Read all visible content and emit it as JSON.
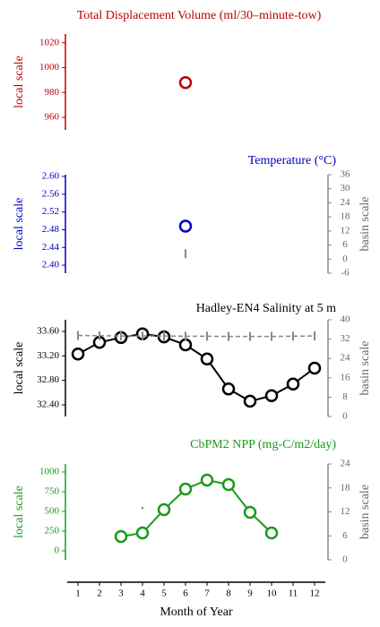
{
  "chart_data": [
    {
      "type": "scatter",
      "title": "Total Displacement Volume (ml/30–minute-tow)",
      "ylabel": "local scale",
      "x": [
        6
      ],
      "xlim": [
        0.5,
        12.5
      ],
      "series": [
        {
          "color": "#c00000",
          "values": [
            988
          ]
        }
      ],
      "ylim": [
        950,
        1027
      ],
      "yticks": [
        960,
        980,
        1000,
        1020
      ]
    },
    {
      "type": "scatter",
      "title": "Temperature (°C)",
      "ylabel": "local scale",
      "y2label": "basin scale",
      "x": [
        6
      ],
      "xlim": [
        0.5,
        12.5
      ],
      "series": [
        {
          "color": "#0000c0",
          "values": [
            2.488
          ]
        },
        {
          "color": "#888888",
          "axis": "y2",
          "marker": "dash",
          "values": [
            2.3
          ]
        }
      ],
      "ylim": [
        2.382,
        2.604
      ],
      "yticks": [
        {
          "value": 2.4,
          "label": "2.40"
        },
        2.44,
        2.48,
        2.52,
        2.56,
        {
          "value": 2.6,
          "label": "2.60"
        }
      ],
      "y2lim": [
        -6,
        36
      ],
      "y2ticks": [
        -6,
        0,
        6,
        12,
        18,
        24,
        30,
        36
      ]
    },
    {
      "type": "line",
      "title": "Hadley-EN4 Salinity at 5 m",
      "ylabel": "local scale",
      "y2label": "basin scale",
      "x": [
        1,
        2,
        3,
        4,
        5,
        6,
        7,
        8,
        9,
        10,
        11,
        12
      ],
      "xlim": [
        0.5,
        12.5
      ],
      "series": [
        {
          "color": "#000000",
          "values": [
            33.23,
            33.42,
            33.5,
            33.56,
            33.51,
            33.38,
            33.15,
            32.66,
            32.46,
            32.55,
            32.74,
            33.0
          ]
        },
        {
          "color": "#888888",
          "axis": "y2",
          "marker": "dash",
          "dashed": true,
          "values": [
            33.5,
            33.4,
            33.3,
            33.3,
            33.3,
            33.2,
            33.2,
            33.1,
            33.1,
            33.1,
            33.2,
            33.3
          ]
        }
      ],
      "ylim": [
        32.21,
        33.79
      ],
      "yticks": [
        {
          "value": 32.4,
          "label": "32.40"
        },
        {
          "value": 32.8,
          "label": "32.80"
        },
        {
          "value": 33.2,
          "label": "33.20"
        },
        {
          "value": 33.6,
          "label": "33.60"
        }
      ],
      "y2lim": [
        0,
        40
      ],
      "y2ticks": [
        0,
        8,
        16,
        24,
        32,
        40
      ]
    },
    {
      "type": "line",
      "title": "CbPM2 NPP (mg-C/m2/day)",
      "ylabel": "local scale",
      "y2label": "basin scale",
      "xlabel": "Month of Year",
      "x": [
        3,
        4,
        5,
        6,
        7,
        8,
        9,
        10
      ],
      "xlim": [
        0.5,
        12.5
      ],
      "xticks": [
        1,
        2,
        3,
        4,
        5,
        6,
        7,
        8,
        9,
        10,
        11,
        12
      ],
      "series": [
        {
          "color": "#1a9a1a",
          "values": [
            182,
            227,
            523,
            784,
            898,
            841,
            489,
            227
          ]
        },
        {
          "color": "#888888",
          "axis": "y2",
          "marker": "dot",
          "x": [
            4
          ],
          "values": [
            13.0
          ]
        }
      ],
      "ylim": [
        -114,
        1102
      ],
      "yticks": [
        0,
        250,
        500,
        750,
        1000
      ],
      "y2lim": [
        0,
        24
      ],
      "y2ticks": [
        0,
        6,
        12,
        18,
        24
      ]
    }
  ]
}
